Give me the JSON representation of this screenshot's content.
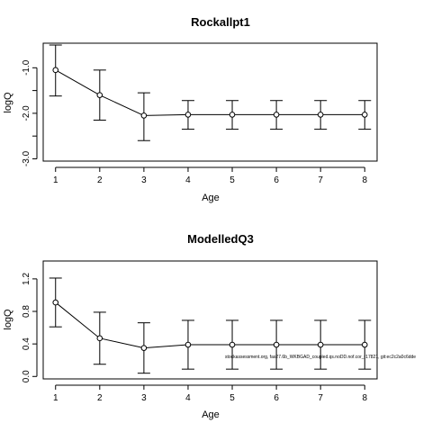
{
  "chart_data": [
    {
      "type": "line",
      "title": "Rockallpt1",
      "xlabel": "Age",
      "ylabel": "logQ",
      "x": [
        1,
        2,
        3,
        4,
        5,
        6,
        7,
        8
      ],
      "xticks": [
        "1",
        "2",
        "3",
        "4",
        "5",
        "6",
        "7",
        "8"
      ],
      "xlim": [
        0.72,
        8.28
      ],
      "ylim": [
        -3.05,
        -0.46
      ],
      "yticks": [
        "-1.0",
        "-2.0",
        "-3.0"
      ],
      "ytick_values": [
        -1.0,
        -2.0,
        -3.0
      ],
      "minor_ytick_values": [
        -1.5,
        -2.5
      ],
      "series": [
        {
          "values": [
            -1.05,
            -1.6,
            -2.05,
            -2.03,
            -2.03,
            -2.03,
            -2.03,
            -2.03
          ],
          "lower": [
            -1.62,
            -2.15,
            -2.6,
            -2.35,
            -2.35,
            -2.35,
            -2.35,
            -2.35
          ],
          "upper": [
            -0.5,
            -1.05,
            -1.55,
            -1.72,
            -1.72,
            -1.72,
            -1.72,
            -1.72
          ]
        }
      ],
      "grid": false,
      "marker": "open-circle"
    },
    {
      "type": "line",
      "title": "ModelledQ3",
      "xlabel": "Age",
      "ylabel": "logQ",
      "x": [
        1,
        2,
        3,
        4,
        5,
        6,
        7,
        8
      ],
      "xticks": [
        "1",
        "2",
        "3",
        "4",
        "5",
        "6",
        "7",
        "8"
      ],
      "xlim": [
        0.72,
        8.28
      ],
      "ylim": [
        -0.03,
        1.42
      ],
      "yticks": [
        "0.0",
        "0.4",
        "0.8",
        "1.2"
      ],
      "ytick_values": [
        0.0,
        0.4,
        0.8,
        1.2
      ],
      "series": [
        {
          "values": [
            0.91,
            0.47,
            0.35,
            0.39,
            0.39,
            0.39,
            0.39,
            0.39
          ],
          "lower": [
            0.61,
            0.15,
            0.04,
            0.09,
            0.09,
            0.09,
            0.09,
            0.09
          ],
          "upper": [
            1.21,
            0.79,
            0.66,
            0.69,
            0.69,
            0.69,
            0.69,
            0.69
          ]
        }
      ],
      "grid": false,
      "marker": "open-circle",
      "annotation": "stockassessment.org, fas27.6b_WKBGAD_coupled.qs.noDD.nof.cor_r17821, git:ec2c2a0c6dde"
    }
  ]
}
